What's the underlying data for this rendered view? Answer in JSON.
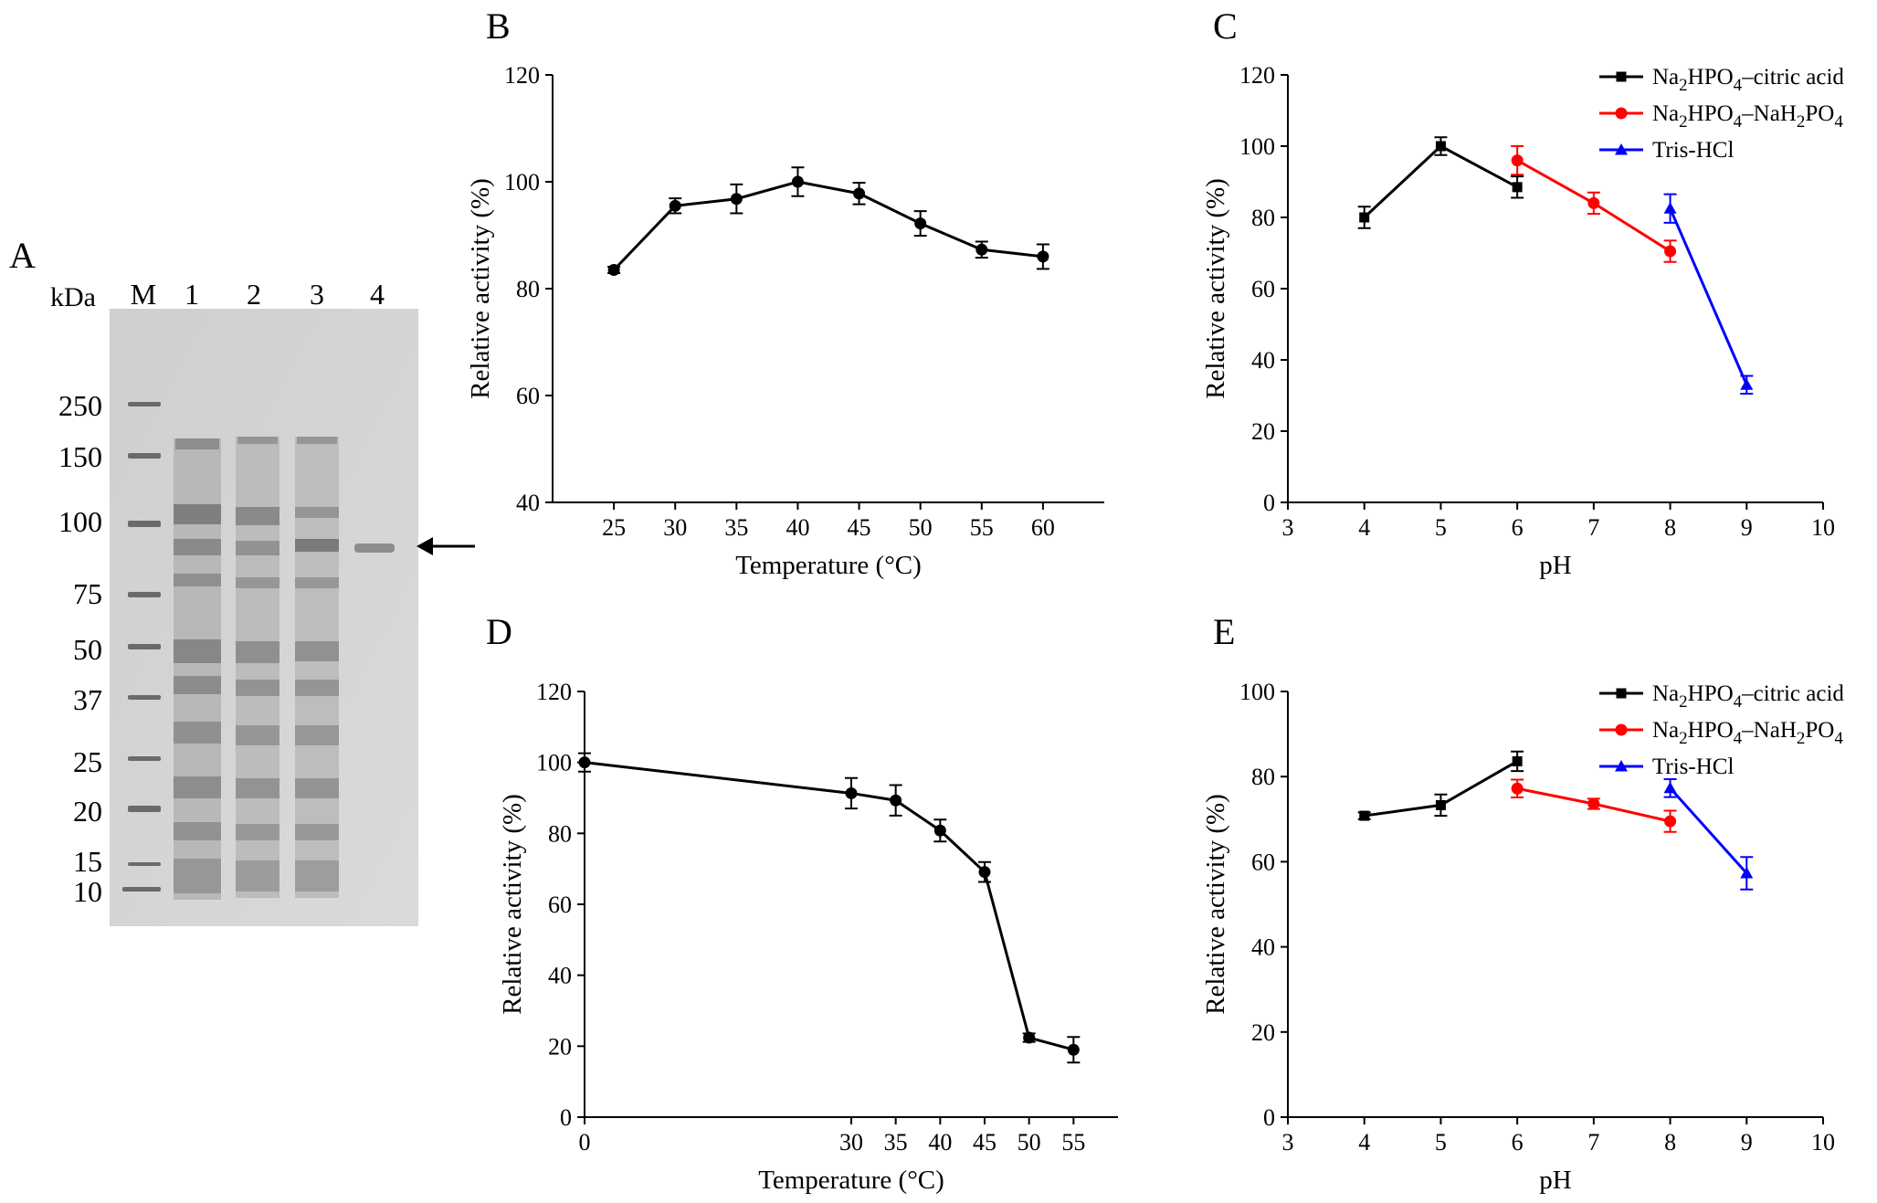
{
  "figure": {
    "panel_labels": [
      "A",
      "B",
      "C",
      "D",
      "E"
    ],
    "gel": {
      "unit_label": "kDa",
      "lane_labels": [
        "M",
        "1",
        "2",
        "3",
        "4"
      ],
      "marker_sizes": [
        "250",
        "150",
        "100",
        "75",
        "50",
        "37",
        "25",
        "20",
        "15",
        "10"
      ],
      "target_band_kda": 88
    }
  },
  "chart_data": [
    {
      "panel": "B",
      "type": "line",
      "title": "",
      "xlabel": "Temperature (°C)",
      "ylabel": "Relative activity (%)",
      "xlim": [
        20,
        65
      ],
      "ylim": [
        40,
        120
      ],
      "xticks": [
        25,
        30,
        35,
        40,
        45,
        50,
        55,
        60
      ],
      "yticks": [
        40,
        60,
        80,
        100,
        120
      ],
      "series": [
        {
          "name": "",
          "color": "#000000",
          "marker": "circle",
          "x": [
            25,
            30,
            35,
            40,
            45,
            50,
            55,
            60
          ],
          "values": [
            83.5,
            95.5,
            96.8,
            100,
            97.8,
            92.2,
            87.3,
            86
          ],
          "errors": [
            0.6,
            1.4,
            2.7,
            2.7,
            2.0,
            2.3,
            1.5,
            2.3
          ]
        }
      ]
    },
    {
      "panel": "C",
      "type": "line",
      "title": "",
      "xlabel": "pH",
      "ylabel": "Relative activity (%)",
      "xlim": [
        3,
        10
      ],
      "ylim": [
        0,
        120
      ],
      "xticks": [
        3,
        4,
        5,
        6,
        7,
        8,
        9,
        10
      ],
      "yticks": [
        0,
        20,
        40,
        60,
        80,
        100,
        120
      ],
      "legend": [
        "Na2HPO4–citric acid",
        "Na2HPO4–NaH2PO4",
        "Tris-HCl"
      ],
      "series": [
        {
          "name": "Na2HPO4–citric acid",
          "color": "#000000",
          "marker": "square",
          "x": [
            4,
            5,
            6
          ],
          "values": [
            80,
            100,
            88.5
          ],
          "errors": [
            3,
            2.5,
            3
          ]
        },
        {
          "name": "Na2HPO4–NaH2PO4",
          "color": "#ff0000",
          "marker": "circle",
          "x": [
            6,
            7,
            8
          ],
          "values": [
            96,
            84,
            70.5
          ],
          "errors": [
            4,
            3,
            3
          ]
        },
        {
          "name": "Tris-HCl",
          "color": "#0000ff",
          "marker": "triangle",
          "x": [
            8,
            9
          ],
          "values": [
            82.5,
            33
          ],
          "errors": [
            4,
            2.5
          ]
        }
      ]
    },
    {
      "panel": "D",
      "type": "line",
      "title": "",
      "xlabel": "Temperature (°C)",
      "ylabel": "Relative activity (%)",
      "xlim": [
        0,
        60
      ],
      "ylim": [
        0,
        120
      ],
      "xticks": [
        0,
        30,
        35,
        40,
        45,
        50,
        55
      ],
      "yticks": [
        0,
        20,
        40,
        60,
        80,
        100,
        120
      ],
      "series": [
        {
          "name": "",
          "color": "#000000",
          "marker": "circle",
          "x": [
            0,
            30,
            35,
            40,
            45,
            50,
            55
          ],
          "values": [
            100,
            91.3,
            89.3,
            80.8,
            69.1,
            22.4,
            19
          ],
          "errors": [
            2.6,
            4.3,
            4.3,
            3.1,
            2.8,
            1.2,
            3.6
          ]
        }
      ]
    },
    {
      "panel": "E",
      "type": "line",
      "title": "",
      "xlabel": "pH",
      "ylabel": "Relative activity (%)",
      "xlim": [
        3,
        10
      ],
      "ylim": [
        0,
        100
      ],
      "xticks": [
        3,
        4,
        5,
        6,
        7,
        8,
        9,
        10
      ],
      "yticks": [
        0,
        20,
        40,
        60,
        80,
        100
      ],
      "legend": [
        "Na2HPO4–citric acid",
        "Na2HPO4–NaH2PO4",
        "Tris-HCl"
      ],
      "series": [
        {
          "name": "Na2HPO4–citric acid",
          "color": "#000000",
          "marker": "square",
          "x": [
            4,
            5,
            6
          ],
          "values": [
            70.8,
            73.3,
            83.6
          ],
          "errors": [
            0.8,
            2.5,
            2.3
          ]
        },
        {
          "name": "Na2HPO4–NaH2PO4",
          "color": "#ff0000",
          "marker": "circle",
          "x": [
            6,
            7,
            8
          ],
          "values": [
            77.2,
            73.6,
            69.5
          ],
          "errors": [
            2.1,
            1.2,
            2.5
          ]
        },
        {
          "name": "Tris-HCl",
          "color": "#0000ff",
          "marker": "triangle",
          "x": [
            8,
            9
          ],
          "values": [
            77.3,
            57.3
          ],
          "errors": [
            2.1,
            3.8
          ]
        }
      ]
    }
  ]
}
